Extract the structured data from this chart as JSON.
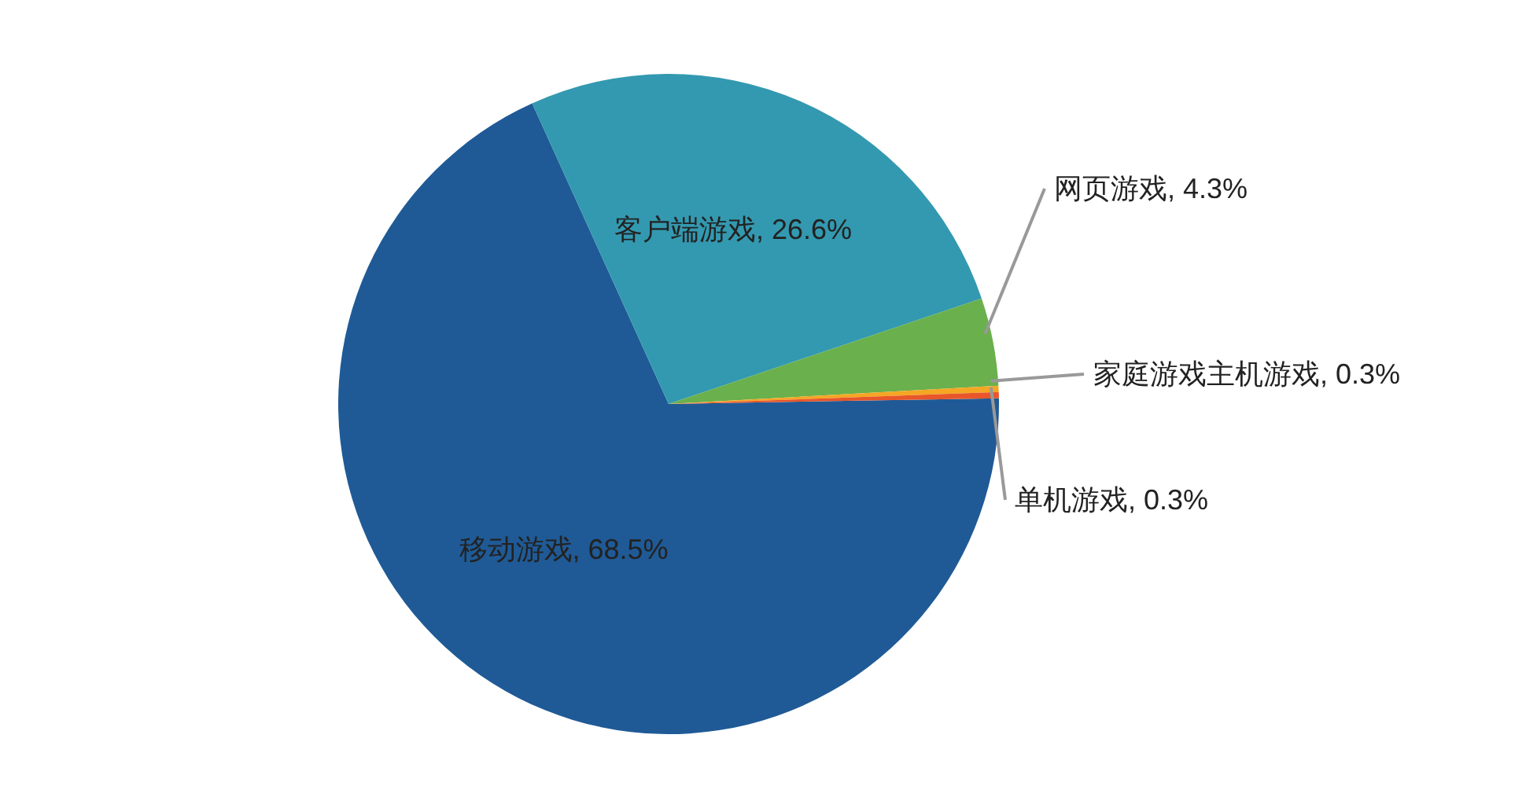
{
  "chart_data": {
    "type": "pie",
    "categories": [
      "移动游戏",
      "客户端游戏",
      "网页游戏",
      "家庭游戏主机游戏",
      "单机游戏"
    ],
    "values": [
      68.5,
      26.6,
      4.3,
      0.3,
      0.3
    ],
    "value_labels": [
      "68.5%",
      "26.6%",
      "4.3%",
      "0.3%",
      "0.3%"
    ],
    "colors": [
      "#1f5a96",
      "#3399b0",
      "#6ab04c",
      "#f5a623",
      "#e8562a"
    ],
    "legend": false
  }
}
